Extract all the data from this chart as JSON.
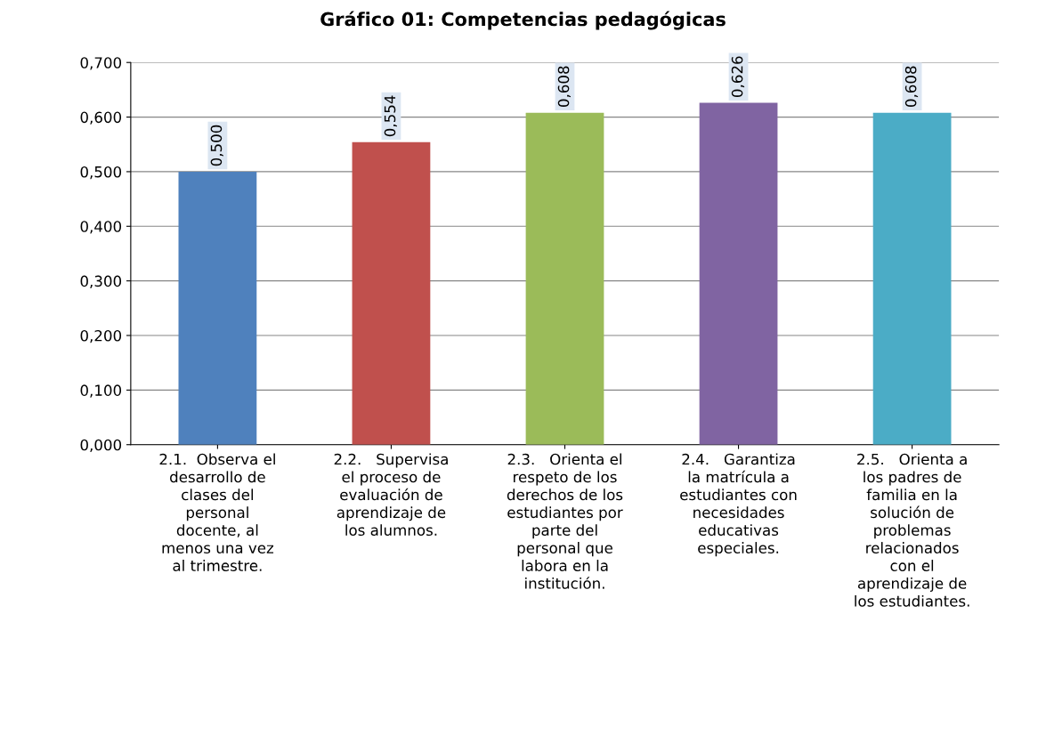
{
  "chart_data": {
    "type": "bar",
    "title": "Gráfico 01: Competencias pedagógicas",
    "categories": [
      "2.1.  Observa el\ndesarrollo de\nclases del\npersonal\ndocente, al\nmenos una vez\nal trimestre.",
      "2.2.   Supervisa\nel proceso de\nevaluación de\naprendizaje de\nlos alumnos.",
      "2.3.   Orienta el\nrespeto de los\nderechos de los\nestudiantes por\nparte del\npersonal que\nlabora en la\ninstitución.",
      "2.4.   Garantiza\nla matrícula a\nestudiantes con\nnecesidades\neducativas\nespeciales.",
      "2.5.   Orienta a\nlos padres de\nfamilia en la\nsolución de\nproblemas\nrelacionados\ncon el\naprendizaje de\nlos estudiantes."
    ],
    "values": [
      0.5,
      0.554,
      0.608,
      0.626,
      0.608
    ],
    "value_labels": [
      "0,500",
      "0,554",
      "0,608",
      "0,626",
      "0,608"
    ],
    "colors": [
      "#4f81bd",
      "#c0504d",
      "#9bbb59",
      "#8064a2",
      "#4bacc6"
    ],
    "ylim": [
      0,
      0.7
    ],
    "yticks": [
      {
        "value": 0,
        "label": "0,000"
      },
      {
        "value": 0.1,
        "label": "0,100"
      },
      {
        "value": 0.2,
        "label": "0,200"
      },
      {
        "value": 0.3,
        "label": "0,300"
      },
      {
        "value": 0.4,
        "label": "0,400"
      },
      {
        "value": 0.5,
        "label": "0,500"
      },
      {
        "value": 0.6,
        "label": "0,600"
      },
      {
        "value": 0.7,
        "label": "0,700"
      }
    ],
    "grid": "y"
  }
}
